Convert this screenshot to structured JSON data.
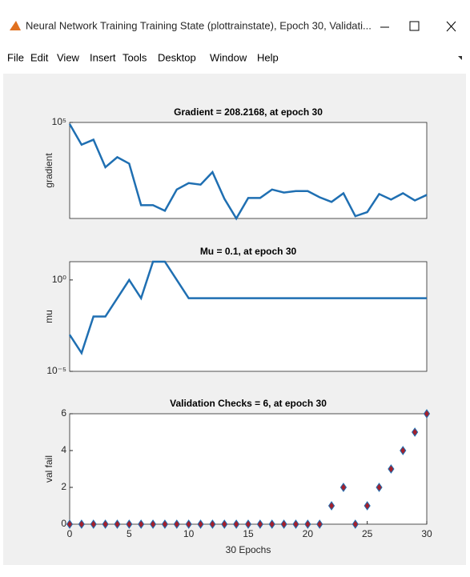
{
  "window": {
    "title": "Neural Network Training Training State (plottrainstate), Epoch 30, Validati...",
    "menu": [
      "File",
      "Edit",
      "View",
      "Insert",
      "Tools",
      "Desktop",
      "Window",
      "Help"
    ]
  },
  "chart_data": [
    {
      "type": "line",
      "title": "Gradient = 208.2168, at epoch 30",
      "y_label": "gradient",
      "log_y": true,
      "x": [
        0,
        1,
        2,
        3,
        4,
        5,
        6,
        7,
        8,
        9,
        10,
        11,
        12,
        13,
        14,
        15,
        16,
        17,
        18,
        19,
        20,
        21,
        22,
        23,
        24,
        25,
        26,
        27,
        28,
        29,
        30
      ],
      "series": [
        {
          "color": "#1f6fb2",
          "values": [
            87000,
            15000,
            23000,
            2200,
            5200,
            3000,
            87,
            87,
            54,
            330,
            570,
            500,
            1450,
            150,
            28,
            160,
            160,
            330,
            255,
            290,
            290,
            170,
            115,
            240,
            34,
            48,
            225,
            140,
            240,
            130,
            208.2168
          ]
        }
      ],
      "xlim": [
        0,
        30
      ],
      "ylim": [
        28,
        100000
      ],
      "yticks": [
        {
          "value": 100000,
          "label": "10⁵"
        }
      ]
    },
    {
      "type": "line",
      "title": "Mu = 0.1, at epoch 30",
      "y_label": "mu",
      "log_y": true,
      "x": [
        0,
        1,
        2,
        3,
        4,
        5,
        6,
        7,
        8,
        9,
        10,
        11,
        12,
        13,
        14,
        15,
        16,
        17,
        18,
        19,
        20,
        21,
        22,
        23,
        24,
        25,
        26,
        27,
        28,
        29,
        30
      ],
      "series": [
        {
          "color": "#1f6fb2",
          "values": [
            0.001,
            0.0001,
            0.01,
            0.01,
            0.1,
            1,
            0.1,
            10,
            10,
            1,
            0.1,
            0.1,
            0.1,
            0.1,
            0.1,
            0.1,
            0.1,
            0.1,
            0.1,
            0.1,
            0.1,
            0.1,
            0.1,
            0.1,
            0.1,
            0.1,
            0.1,
            0.1,
            0.1,
            0.1,
            0.1
          ]
        }
      ],
      "xlim": [
        0,
        30
      ],
      "ylim": [
        1e-05,
        10
      ],
      "yticks": [
        {
          "value": 1,
          "label": "10⁰"
        },
        {
          "value": 1e-05,
          "label": "10⁻⁵"
        }
      ]
    },
    {
      "type": "scatter",
      "title": "Validation Checks = 6, at epoch 30",
      "y_label": "val fail",
      "x_label": "30 Epochs",
      "x": [
        0,
        1,
        2,
        3,
        4,
        5,
        6,
        7,
        8,
        9,
        10,
        11,
        12,
        13,
        14,
        15,
        16,
        17,
        18,
        19,
        20,
        21,
        22,
        23,
        24,
        25,
        26,
        27,
        28,
        29,
        30
      ],
      "series": [
        {
          "color": "#a3202c",
          "edgecolor": "#1f6fb2",
          "values": [
            0,
            0,
            0,
            0,
            0,
            0,
            0,
            0,
            0,
            0,
            0,
            0,
            0,
            0,
            0,
            0,
            0,
            0,
            0,
            0,
            0,
            0,
            1,
            2,
            0,
            1,
            2,
            3,
            4,
            5,
            6
          ]
        }
      ],
      "xlim": [
        0,
        30
      ],
      "ylim": [
        0,
        6
      ],
      "xticks": [
        0,
        5,
        10,
        15,
        20,
        25,
        30
      ],
      "yticks": [
        0,
        2,
        4,
        6
      ]
    }
  ]
}
